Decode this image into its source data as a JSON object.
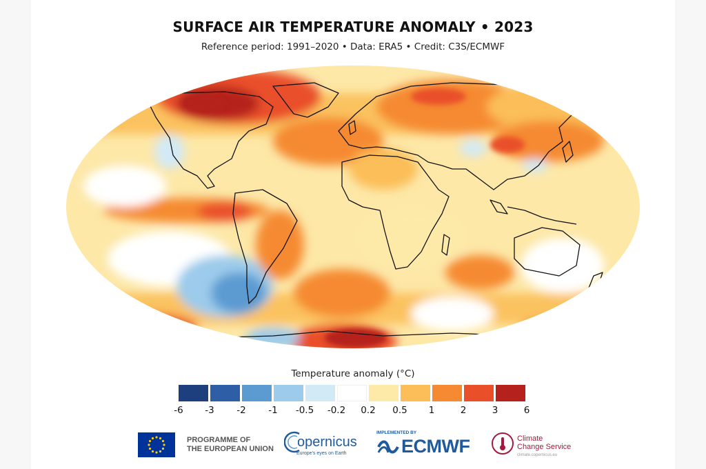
{
  "header": {
    "title": "SURFACE AIR TEMPERATURE ANOMALY • 2023",
    "subtitle": "Reference period: 1991–2020 • Data: ERA5 • Credit: C3S/ECMWF"
  },
  "map": {
    "projection": "Robinson",
    "background_anomaly_color": "#fde8a8"
  },
  "legend": {
    "title": "Temperature anomaly (°C)",
    "ticks": [
      "-6",
      "-3",
      "-2",
      "-1",
      "-0.5",
      "-0.2",
      "0.2",
      "0.5",
      "1",
      "2",
      "3",
      "6"
    ],
    "colors": [
      "#1e3f7e",
      "#2e5ea6",
      "#5b9bd2",
      "#9ccbeb",
      "#d2e9f6",
      "#ffffff",
      "#fdeaa8",
      "#fbbe58",
      "#f58a33",
      "#e9502a",
      "#b5221e"
    ]
  },
  "logos": {
    "eu_text": "PROGRAMME OF\nTHE EUROPEAN UNION",
    "copernicus_word": "opernicus",
    "copernicus_tagline": "Europe's eyes on Earth",
    "ecmwf_implemented": "IMPLEMENTED BY",
    "ecmwf_word": "ECMWF",
    "c3s_text": "Climate\nChange Service",
    "c3s_url": "climate.copernicus.eu"
  }
}
